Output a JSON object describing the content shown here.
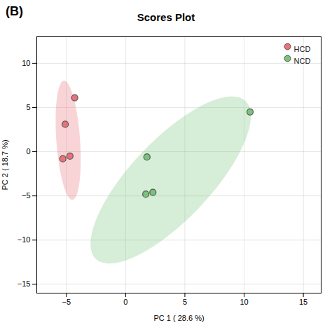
{
  "chart_data": {
    "type": "scatter",
    "title": "Scores Plot",
    "panel_label": "(B)",
    "xlabel": "PC 1 ( 28.6 %)",
    "ylabel": "PC 2 ( 18.7 %)",
    "xlim": [
      -7.5,
      16.5
    ],
    "ylim": [
      -16,
      13
    ],
    "xticks": [
      -5,
      0,
      5,
      10,
      15
    ],
    "yticks": [
      -15,
      -10,
      -5,
      0,
      5,
      10
    ],
    "grid": true,
    "legend": "upper right",
    "series": [
      {
        "name": "HCD",
        "color": "#e8717a",
        "x": [
          -5.3,
          -4.7,
          -5.1,
          -4.3
        ],
        "values": [
          -0.8,
          -0.5,
          3.1,
          6.1
        ],
        "ellipse": {
          "center": [
            -4.85,
            1.3
          ],
          "width": 2.0,
          "height": 13.5,
          "angle": 3
        }
      },
      {
        "name": "NCD",
        "color": "#77c47a",
        "x": [
          1.7,
          2.3,
          1.8,
          10.5
        ],
        "values": [
          -4.8,
          -4.6,
          -0.6,
          4.5
        ],
        "ellipse": {
          "center": [
            3.8,
            -3.2
          ],
          "width": 7.5,
          "height": 22.0,
          "angle": -33
        }
      }
    ]
  }
}
